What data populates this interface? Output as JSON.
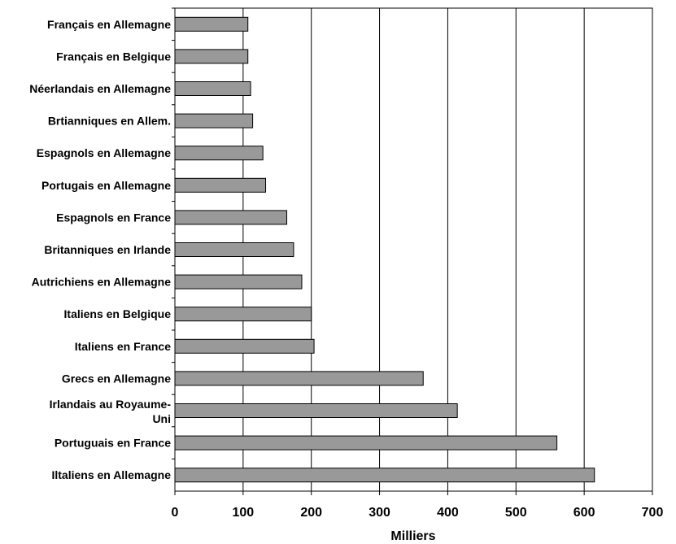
{
  "chart_data": {
    "type": "bar",
    "orientation": "horizontal",
    "categories": [
      "Français en Allemagne",
      "Français en Belgique",
      "Néerlandais en Allemagne",
      "Brtianniques en Allem.",
      "Espagnols en Allemagne",
      "Portugais en Allemagne",
      "Espagnols en France",
      "Britanniques en Irlande",
      "Autrichiens en Allemagne",
      "Italiens en Belgique",
      "Italiens en France",
      "Grecs en Allemagne",
      "Irlandais au Royaume-Uni",
      "Portuguais en France",
      "Iltaliens en Allemagne"
    ],
    "values": [
      107,
      107,
      111,
      114,
      129,
      133,
      164,
      174,
      186,
      200,
      204,
      364,
      414,
      560,
      615
    ],
    "xlabel": "Milliers",
    "ylabel": "",
    "title": "",
    "xlim": [
      0,
      700
    ],
    "xticks": [
      0,
      100,
      200,
      300,
      400,
      500,
      600,
      700
    ],
    "grid": "vertical",
    "bar_color": "#999999",
    "legend": "none"
  }
}
